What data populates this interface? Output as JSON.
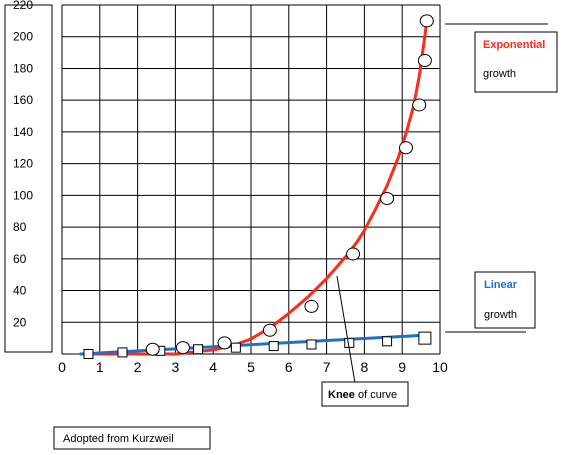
{
  "chart_data": {
    "type": "line",
    "x_ticks": [
      "0",
      "1",
      "2",
      "3",
      "4",
      "5",
      "6",
      "7",
      "8",
      "9",
      "10"
    ],
    "y_ticks": [
      "20",
      "40",
      "60",
      "80",
      "100",
      "120",
      "140",
      "160",
      "180",
      "200",
      "220"
    ],
    "xlim": [
      0,
      10
    ],
    "ylim": [
      0,
      220
    ],
    "grid": true,
    "series": [
      {
        "name": "Exponential growth",
        "color": "#ff2a1a",
        "curve_x": [
          0.5,
          1.0,
          1.5,
          2.0,
          2.5,
          3.0,
          3.5,
          4.0,
          4.5,
          5.0,
          5.5,
          6.0,
          6.5,
          7.0,
          7.5,
          7.8,
          8.0,
          8.3,
          8.6,
          8.9,
          9.1,
          9.3,
          9.45,
          9.55,
          9.62,
          9.65
        ],
        "curve_y": [
          0.0,
          0.0,
          0.0,
          0.0,
          0.0,
          0.0,
          1.3,
          2.6,
          5.1,
          9.5,
          16.5,
          25.6,
          35.8,
          47.5,
          61.2,
          70.4,
          78.0,
          91.5,
          106.2,
          124.0,
          139.0,
          156.0,
          175.0,
          192.0,
          204.0,
          210.0
        ],
        "points": [
          {
            "x": 2.4,
            "y": 3
          },
          {
            "x": 3.2,
            "y": 4
          },
          {
            "x": 4.3,
            "y": 7
          },
          {
            "x": 5.5,
            "y": 15
          },
          {
            "x": 6.6,
            "y": 30
          },
          {
            "x": 7.7,
            "y": 63
          },
          {
            "x": 8.6,
            "y": 98
          },
          {
            "x": 9.1,
            "y": 130
          },
          {
            "x": 9.45,
            "y": 157
          },
          {
            "x": 9.6,
            "y": 185
          },
          {
            "x": 9.65,
            "y": 210
          }
        ]
      },
      {
        "name": "Linear growth",
        "color": "#1f6fc4",
        "curve_x": [
          0.5,
          9.7
        ],
        "curve_y": [
          0,
          12
        ],
        "points": [
          {
            "x": 0.7,
            "y": 0
          },
          {
            "x": 1.6,
            "y": 1
          },
          {
            "x": 2.6,
            "y": 2
          },
          {
            "x": 3.6,
            "y": 3
          },
          {
            "x": 4.6,
            "y": 4
          },
          {
            "x": 5.6,
            "y": 5
          },
          {
            "x": 6.6,
            "y": 6
          },
          {
            "x": 7.6,
            "y": 7
          },
          {
            "x": 8.6,
            "y": 8
          },
          {
            "x": 9.6,
            "y": 10
          }
        ]
      }
    ],
    "annotations": {
      "exponential": {
        "line1": "Exponential",
        "line2": "growth"
      },
      "linear": {
        "line1": "Linear",
        "line2": "growth"
      },
      "knee": {
        "bold": "Knee",
        "rest": " of curve"
      },
      "source": "Adopted from Kurzweil"
    }
  }
}
